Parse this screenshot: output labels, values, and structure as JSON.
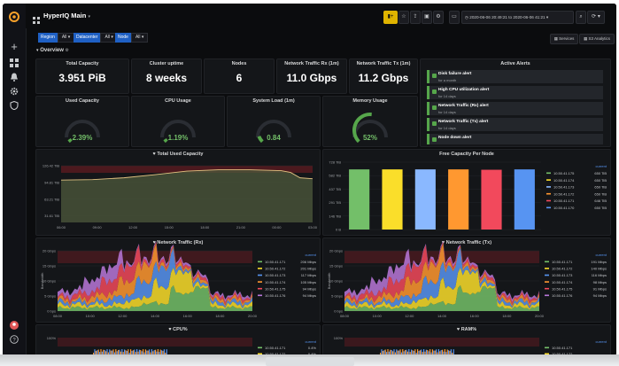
{
  "topbar": {
    "title": "HyperIQ Main",
    "time_range": "2020-06-06 20:49:21 to 2020-06-06 41:21"
  },
  "variables": [
    {
      "label": "Region",
      "value": "All"
    },
    {
      "label": "Datacenter",
      "value": "All"
    },
    {
      "label": "Node",
      "value": "All"
    }
  ],
  "row_title": "Overview",
  "nav_links": [
    "Services",
    "S3 Analytics"
  ],
  "stats": [
    {
      "title": "Total Capacity",
      "value": "3.951 PiB"
    },
    {
      "title": "Cluster uptime",
      "value": "8 weeks"
    },
    {
      "title": "Nodes",
      "value": "6"
    },
    {
      "title": "Network Traffic Rx (1m)",
      "value": "11.0 Gbps"
    },
    {
      "title": "Network Traffic Tx (1m)",
      "value": "11.2 Gbps"
    }
  ],
  "gauges": [
    {
      "title": "Used Capacity",
      "value": "2.39%",
      "fraction": 0.0239,
      "color": "#56a64b"
    },
    {
      "title": "CPU Usage",
      "value": "1.19%",
      "fraction": 0.0119,
      "color": "#56a64b"
    },
    {
      "title": "System Load (1m)",
      "value": "0.84",
      "fraction": 0.084,
      "color": "#56a64b"
    },
    {
      "title": "Memory Usage",
      "value": "52%",
      "fraction": 0.52,
      "color": "#56a64b"
    }
  ],
  "alerts": {
    "title": "Active Alerts",
    "items": [
      {
        "name": "Disk failure alert",
        "state": "for a month"
      },
      {
        "name": "High CPU utilization alert",
        "state": "for 14 days"
      },
      {
        "name": "Network Traffic (Rx) alert",
        "state": "for 14 days"
      },
      {
        "name": "Network Traffic (Tx) alert",
        "state": "for 14 days"
      },
      {
        "name": "Node down alert",
        "state": ""
      }
    ]
  },
  "panels": {
    "total_used": "Total Used Capacity",
    "free_per_node": "Free Capacity Per Node",
    "net_rx": "Network Traffic (Rx)",
    "net_tx": "Network Traffic (Tx)",
    "cpu": "CPU%",
    "ram": "RAM%"
  },
  "chart_data": [
    {
      "type": "area",
      "title": "Total Used Capacity",
      "y_ticks": [
        "126.42 TiB",
        "94.81 TiB",
        "63.21 TiB",
        "31.61 TiB"
      ],
      "x_ticks": [
        "06:00",
        "09:00",
        "12:00",
        "15:00",
        "18:00",
        "21:00",
        "00:00",
        "03:00"
      ],
      "x": [
        0,
        1,
        2,
        3,
        4,
        5,
        6,
        7,
        7.3,
        7.6,
        8
      ],
      "values": [
        95,
        96,
        100,
        107,
        115,
        118,
        118,
        116,
        112,
        100,
        98
      ],
      "ylim": [
        0,
        135
      ]
    },
    {
      "type": "bar",
      "title": "Free Capacity Per Node",
      "y_ticks": [
        "728 TiB",
        "582 TiB",
        "437 TiB",
        "291 TiB",
        "146 TiB",
        "0 B"
      ],
      "categories": [
        "10.50.41.175",
        "10.50.41.174",
        "10.50.41.173",
        "10.50.41.172",
        "10.50.41.171",
        "10.50.41.170"
      ],
      "values": [
        650,
        650,
        650,
        650,
        646,
        650
      ],
      "colors": [
        "#73bf69",
        "#fade2a",
        "#8ab8ff",
        "#ff9830",
        "#f2495c",
        "#5794f2"
      ],
      "legend_header": "current",
      "legend_values": [
        "650 TiB",
        "650 TiB",
        "650 TiB",
        "650 TiB",
        "646 TiB",
        "650 TiB"
      ],
      "ylim": [
        0,
        728
      ]
    },
    {
      "type": "area",
      "title": "Network Traffic (Rx)",
      "ylabel": "Bandwidth",
      "y_ticks": [
        "20 Gbps",
        "15 Gbps",
        "10 Gbps",
        "5 Gbps",
        "0 bps"
      ],
      "x_ticks": [
        "08:00",
        "10:00",
        "12:00",
        "14:00",
        "16:00",
        "18:00",
        "20:00"
      ],
      "legend_header": "current",
      "series": [
        {
          "name": "10.50.41.171",
          "current": "206 Mbps",
          "color": "#73bf69"
        },
        {
          "name": "10.50.41.172",
          "current": "201 Mbps",
          "color": "#fade2a"
        },
        {
          "name": "10.50.41.173",
          "current": "117 Mbps",
          "color": "#5794f2"
        },
        {
          "name": "10.50.41.174",
          "current": "105 Mbps",
          "color": "#ff9830"
        },
        {
          "name": "10.50.41.175",
          "current": "94 Mbps",
          "color": "#f2495c"
        },
        {
          "name": "10.50.41.176",
          "current": "94 Mbps",
          "color": "#b877d9"
        }
      ],
      "ylim": [
        0,
        20
      ]
    },
    {
      "type": "area",
      "title": "Network Traffic (Tx)",
      "ylabel": "Bandwidth",
      "y_ticks": [
        "20 Gbps",
        "15 Gbps",
        "10 Gbps",
        "5 Gbps",
        "0 bps"
      ],
      "x_ticks": [
        "08:00",
        "10:00",
        "12:00",
        "14:00",
        "16:00",
        "18:00",
        "20:00"
      ],
      "legend_header": "current",
      "series": [
        {
          "name": "10.50.41.171",
          "current": "191 Mbps",
          "color": "#73bf69"
        },
        {
          "name": "10.50.41.172",
          "current": "140 Mbps",
          "color": "#fade2a"
        },
        {
          "name": "10.50.41.173",
          "current": "116 Mbps",
          "color": "#5794f2"
        },
        {
          "name": "10.50.41.174",
          "current": "98 Mbps",
          "color": "#ff9830"
        },
        {
          "name": "10.50.41.175",
          "current": "91 Mbps",
          "color": "#f2495c"
        },
        {
          "name": "10.50.41.176",
          "current": "94 Mbps",
          "color": "#b877d9"
        }
      ],
      "ylim": [
        0,
        20
      ]
    },
    {
      "type": "area",
      "title": "CPU%",
      "y_ticks": [
        "100%"
      ],
      "legend_header": "current",
      "series": [
        {
          "name": "10.50.41.171",
          "current": "0.4%",
          "color": "#73bf69"
        },
        {
          "name": "10.50.41.172",
          "current": "0.4%",
          "color": "#fade2a"
        }
      ]
    },
    {
      "type": "area",
      "title": "RAM%",
      "y_ticks": [
        "100%"
      ],
      "legend_header": "current",
      "series": [
        {
          "name": "10.50.41.171",
          "current": "",
          "color": "#73bf69"
        },
        {
          "name": "10.50.41.172",
          "current": "",
          "color": "#fade2a"
        }
      ]
    }
  ]
}
